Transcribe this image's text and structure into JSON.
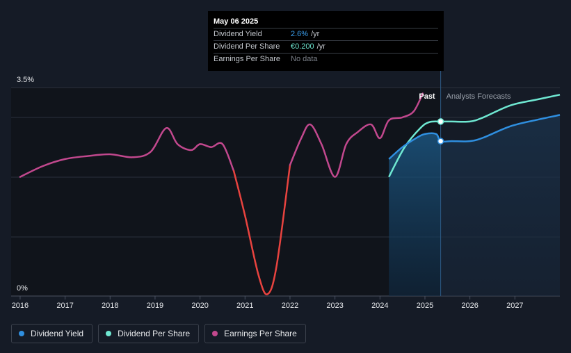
{
  "tooltip": {
    "date": "May 06 2025",
    "rows": [
      {
        "label": "Dividend Yield",
        "value": "2.6%",
        "unit": "/yr",
        "color": "#3a9eed"
      },
      {
        "label": "Dividend Per Share",
        "value": "€0.200",
        "unit": "/yr",
        "color": "#6ee6cf"
      },
      {
        "label": "Earnings Per Share",
        "value": "No data",
        "unit": "",
        "color": "#7b8089"
      }
    ]
  },
  "legend": [
    {
      "label": "Dividend Yield",
      "color": "#2f8fe0"
    },
    {
      "label": "Dividend Per Share",
      "color": "#6fe8d2"
    },
    {
      "label": "Earnings Per Share",
      "color": "#c2488e"
    }
  ],
  "chart_data": {
    "type": "line",
    "y_axis_label_top": "3.5%",
    "y_axis_label_bottom": "0%",
    "ylim": [
      0,
      3.5
    ],
    "xlim": [
      2015.8,
      2028.0
    ],
    "x_ticks": [
      "2016",
      "2017",
      "2018",
      "2019",
      "2020",
      "2021",
      "2022",
      "2023",
      "2024",
      "2025",
      "2026",
      "2027"
    ],
    "past_label": "Past",
    "forecast_label": "Analysts Forecasts",
    "forecast_start": 2025.35,
    "grid": true,
    "series": [
      {
        "name": "Earnings Per Share",
        "color": "#c2488e",
        "negative_color": "#e8433f",
        "points": [
          [
            2016.0,
            2.0
          ],
          [
            2016.5,
            2.18
          ],
          [
            2017.0,
            2.3
          ],
          [
            2017.5,
            2.35
          ],
          [
            2018.0,
            2.38
          ],
          [
            2018.5,
            2.33
          ],
          [
            2018.9,
            2.42
          ],
          [
            2019.25,
            2.82
          ],
          [
            2019.5,
            2.55
          ],
          [
            2019.8,
            2.45
          ],
          [
            2020.0,
            2.55
          ],
          [
            2020.25,
            2.5
          ],
          [
            2020.5,
            2.55
          ],
          [
            2020.75,
            2.1
          ],
          [
            2021.0,
            1.35
          ],
          [
            2021.3,
            0.35
          ],
          [
            2021.5,
            0.03
          ],
          [
            2021.7,
            0.5
          ],
          [
            2022.0,
            2.2
          ],
          [
            2022.25,
            2.65
          ],
          [
            2022.45,
            2.88
          ],
          [
            2022.7,
            2.55
          ],
          [
            2023.0,
            2.0
          ],
          [
            2023.25,
            2.55
          ],
          [
            2023.5,
            2.75
          ],
          [
            2023.8,
            2.88
          ],
          [
            2024.0,
            2.65
          ],
          [
            2024.2,
            2.95
          ],
          [
            2024.5,
            3.0
          ],
          [
            2024.75,
            3.1
          ],
          [
            2024.95,
            3.4
          ]
        ]
      },
      {
        "name": "Dividend Per Share",
        "color": "#6fe8d2",
        "points": [
          [
            2024.2,
            2.0
          ],
          [
            2024.55,
            2.5
          ],
          [
            2024.9,
            2.82
          ],
          [
            2025.1,
            2.92
          ],
          [
            2025.35,
            2.93
          ],
          [
            2025.6,
            2.93
          ],
          [
            2026.0,
            2.93
          ],
          [
            2026.3,
            3.0
          ],
          [
            2026.9,
            3.2
          ],
          [
            2027.5,
            3.3
          ],
          [
            2028.0,
            3.38
          ]
        ]
      },
      {
        "name": "Dividend Yield",
        "color": "#2f8fe0",
        "points": [
          [
            2024.2,
            2.3
          ],
          [
            2024.5,
            2.5
          ],
          [
            2024.8,
            2.65
          ],
          [
            2025.0,
            2.72
          ],
          [
            2025.25,
            2.72
          ],
          [
            2025.35,
            2.6
          ],
          [
            2025.6,
            2.6
          ],
          [
            2026.0,
            2.6
          ],
          [
            2026.3,
            2.66
          ],
          [
            2026.9,
            2.85
          ],
          [
            2027.5,
            2.96
          ],
          [
            2028.0,
            3.04
          ]
        ]
      }
    ],
    "highlight_points": [
      {
        "series": "Dividend Per Share",
        "x": 2025.35,
        "y": 2.93
      },
      {
        "series": "Dividend Yield",
        "x": 2025.35,
        "y": 2.6
      }
    ]
  }
}
